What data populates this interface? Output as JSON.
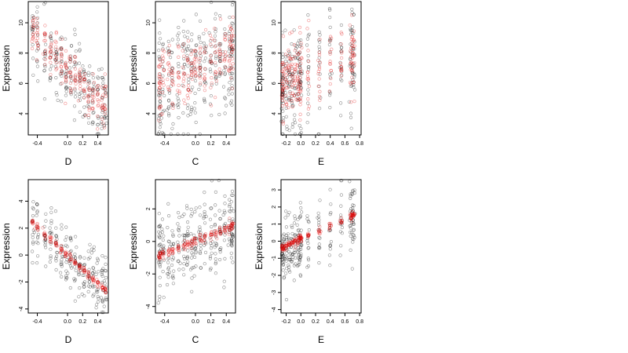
{
  "chart_data": [
    {
      "type": "scatter",
      "panel": "top-left",
      "xlabel": "D",
      "ylabel": "Expression",
      "xlim": [
        -0.52,
        0.54
      ],
      "ylim": [
        2.6,
        11.4
      ],
      "xticks": [
        "-0.4",
        "0.0",
        "0.2",
        "0.4"
      ],
      "xtick_values": [
        -0.4,
        0.0,
        0.2,
        0.4
      ],
      "yticks": [
        "4",
        "6",
        "8",
        "10"
      ],
      "ytick_values": [
        4,
        6,
        8,
        10
      ],
      "observed": {
        "color": "#000000",
        "trend": [
          [
            -0.46,
            9.2
          ],
          [
            0.5,
            4.2
          ]
        ],
        "spread": 1.3,
        "n": 240,
        "x_clusters": [
          -0.46,
          -0.4,
          -0.3,
          -0.22,
          -0.15,
          -0.08,
          -0.02,
          0.04,
          0.1,
          0.16,
          0.22,
          0.28,
          0.34,
          0.4,
          0.46,
          0.5
        ]
      },
      "fitted": {
        "color": "#e00000",
        "trend": [
          [
            -0.46,
            9.3
          ],
          [
            0.5,
            4.3
          ]
        ],
        "spread": 0.7,
        "n": 200
      }
    },
    {
      "type": "scatter",
      "panel": "top-middle",
      "xlabel": "C",
      "ylabel": "Expression",
      "xlim": [
        -0.52,
        0.52
      ],
      "ylim": [
        2.6,
        11.4
      ],
      "xticks": [
        "-0.4",
        "0.0",
        "0.2",
        "0.4"
      ],
      "xtick_values": [
        -0.4,
        0.0,
        0.2,
        0.4
      ],
      "yticks": [
        "4",
        "6",
        "8",
        "10"
      ],
      "ytick_values": [
        4,
        6,
        8,
        10
      ],
      "observed": {
        "color": "#000000",
        "trend": [
          [
            -0.47,
            5.9
          ],
          [
            0.48,
            7.9
          ]
        ],
        "spread": 1.9,
        "n": 300,
        "x_clusters": [
          -0.47,
          -0.46,
          -0.42,
          -0.35,
          -0.3,
          -0.22,
          -0.15,
          -0.1,
          -0.05,
          0.0,
          0.06,
          0.12,
          0.2,
          0.26,
          0.32,
          0.38,
          0.44,
          0.47,
          0.48
        ]
      },
      "fitted": {
        "color": "#e00000",
        "trend": [
          [
            -0.47,
            6.0
          ],
          [
            0.48,
            8.0
          ]
        ],
        "spread": 1.1,
        "n": 220
      }
    },
    {
      "type": "scatter",
      "panel": "top-right",
      "xlabel": "E",
      "ylabel": "Expression",
      "xlim": [
        -0.27,
        0.82
      ],
      "ylim": [
        2.6,
        11.4
      ],
      "xticks": [
        "-0.2",
        "0.0",
        "0.2",
        "0.4",
        "0.6",
        "0.8"
      ],
      "xtick_values": [
        -0.2,
        0.0,
        0.2,
        0.4,
        0.6,
        0.8
      ],
      "yticks": [
        "4",
        "6",
        "8",
        "10"
      ],
      "ytick_values": [
        4,
        6,
        8,
        10
      ],
      "observed": {
        "color": "#000000",
        "trend": [
          [
            -0.25,
            5.6
          ],
          [
            0.72,
            7.9
          ]
        ],
        "spread": 1.7,
        "n": 260,
        "x_clusters": [
          -0.25,
          -0.24,
          -0.2,
          -0.16,
          -0.12,
          -0.08,
          -0.04,
          -0.01,
          0.0,
          0.1,
          0.25,
          0.4,
          0.55,
          0.68,
          0.7,
          0.72
        ]
      },
      "fitted": {
        "color": "#e00000",
        "trend": [
          [
            -0.25,
            6.0
          ],
          [
            0.72,
            7.8
          ]
        ],
        "spread": 1.2,
        "n": 230
      }
    },
    {
      "type": "scatter",
      "panel": "bottom-left",
      "xlabel": "D",
      "ylabel": "Expression",
      "xlim": [
        -0.52,
        0.54
      ],
      "ylim": [
        -4.3,
        5.6
      ],
      "xticks": [
        "-0.4",
        "0.0",
        "0.2",
        "0.4"
      ],
      "xtick_values": [
        -0.4,
        0.0,
        0.2,
        0.4
      ],
      "yticks": [
        "-4",
        "-2",
        "0",
        "2",
        "4"
      ],
      "ytick_values": [
        -4,
        -2,
        0,
        2,
        4
      ],
      "observed": {
        "color": "#000000",
        "trend": [
          [
            -0.46,
            2.3
          ],
          [
            0.5,
            -2.7
          ]
        ],
        "spread": 1.2,
        "n": 240,
        "x_clusters": [
          -0.46,
          -0.4,
          -0.3,
          -0.22,
          -0.15,
          -0.08,
          -0.02,
          0.04,
          0.1,
          0.16,
          0.22,
          0.28,
          0.34,
          0.4,
          0.46,
          0.5
        ]
      },
      "fitted": {
        "color": "#e00000",
        "trend": [
          [
            -0.46,
            2.4
          ],
          [
            0.5,
            -2.6
          ]
        ],
        "spread": 0.15,
        "n": 160
      }
    },
    {
      "type": "scatter",
      "panel": "bottom-middle",
      "xlabel": "C",
      "ylabel": "Expression",
      "xlim": [
        -0.52,
        0.52
      ],
      "ylim": [
        -4.4,
        3.8
      ],
      "xticks": [
        "-0.4",
        "0.0",
        "0.2",
        "0.4"
      ],
      "xtick_values": [
        -0.4,
        0.0,
        0.2,
        0.4
      ],
      "yticks": [
        "-4",
        "-2",
        "0",
        "2"
      ],
      "ytick_values": [
        -4,
        -2,
        0,
        2
      ],
      "observed": {
        "color": "#000000",
        "trend": [
          [
            -0.47,
            -0.9
          ],
          [
            0.48,
            1.0
          ]
        ],
        "spread": 1.2,
        "n": 300,
        "x_clusters": [
          -0.47,
          -0.46,
          -0.42,
          -0.35,
          -0.3,
          -0.22,
          -0.15,
          -0.1,
          -0.05,
          0.0,
          0.06,
          0.12,
          0.2,
          0.26,
          0.32,
          0.38,
          0.44,
          0.47,
          0.48
        ]
      },
      "fitted": {
        "color": "#e00000",
        "trend": [
          [
            -0.47,
            -0.9
          ],
          [
            0.48,
            0.95
          ]
        ],
        "spread": 0.15,
        "n": 170
      }
    },
    {
      "type": "scatter",
      "panel": "bottom-right",
      "xlabel": "E",
      "ylabel": "Expression",
      "xlim": [
        -0.27,
        0.82
      ],
      "ylim": [
        -4.2,
        3.6
      ],
      "xticks": [
        "-0.2",
        "0.0",
        "0.2",
        "0.4",
        "0.6",
        "0.8"
      ],
      "xtick_values": [
        -0.2,
        0.0,
        0.2,
        0.4,
        0.6,
        0.8
      ],
      "yticks": [
        "-4",
        "-3",
        "-2",
        "-1",
        "0",
        "1",
        "2",
        "3"
      ],
      "ytick_values": [
        -4,
        -3,
        -2,
        -1,
        0,
        1,
        2,
        3
      ],
      "observed": {
        "color": "#000000",
        "trend": [
          [
            -0.25,
            -0.5
          ],
          [
            0.72,
            1.5
          ]
        ],
        "spread": 1.0,
        "n": 260,
        "x_clusters": [
          -0.25,
          -0.24,
          -0.2,
          -0.16,
          -0.12,
          -0.08,
          -0.04,
          -0.01,
          0.0,
          0.1,
          0.25,
          0.4,
          0.55,
          0.68,
          0.7,
          0.72
        ]
      },
      "fitted": {
        "color": "#e00000",
        "trend": [
          [
            -0.25,
            -0.35
          ],
          [
            0.72,
            1.5
          ]
        ],
        "spread": 0.12,
        "n": 170
      }
    }
  ]
}
